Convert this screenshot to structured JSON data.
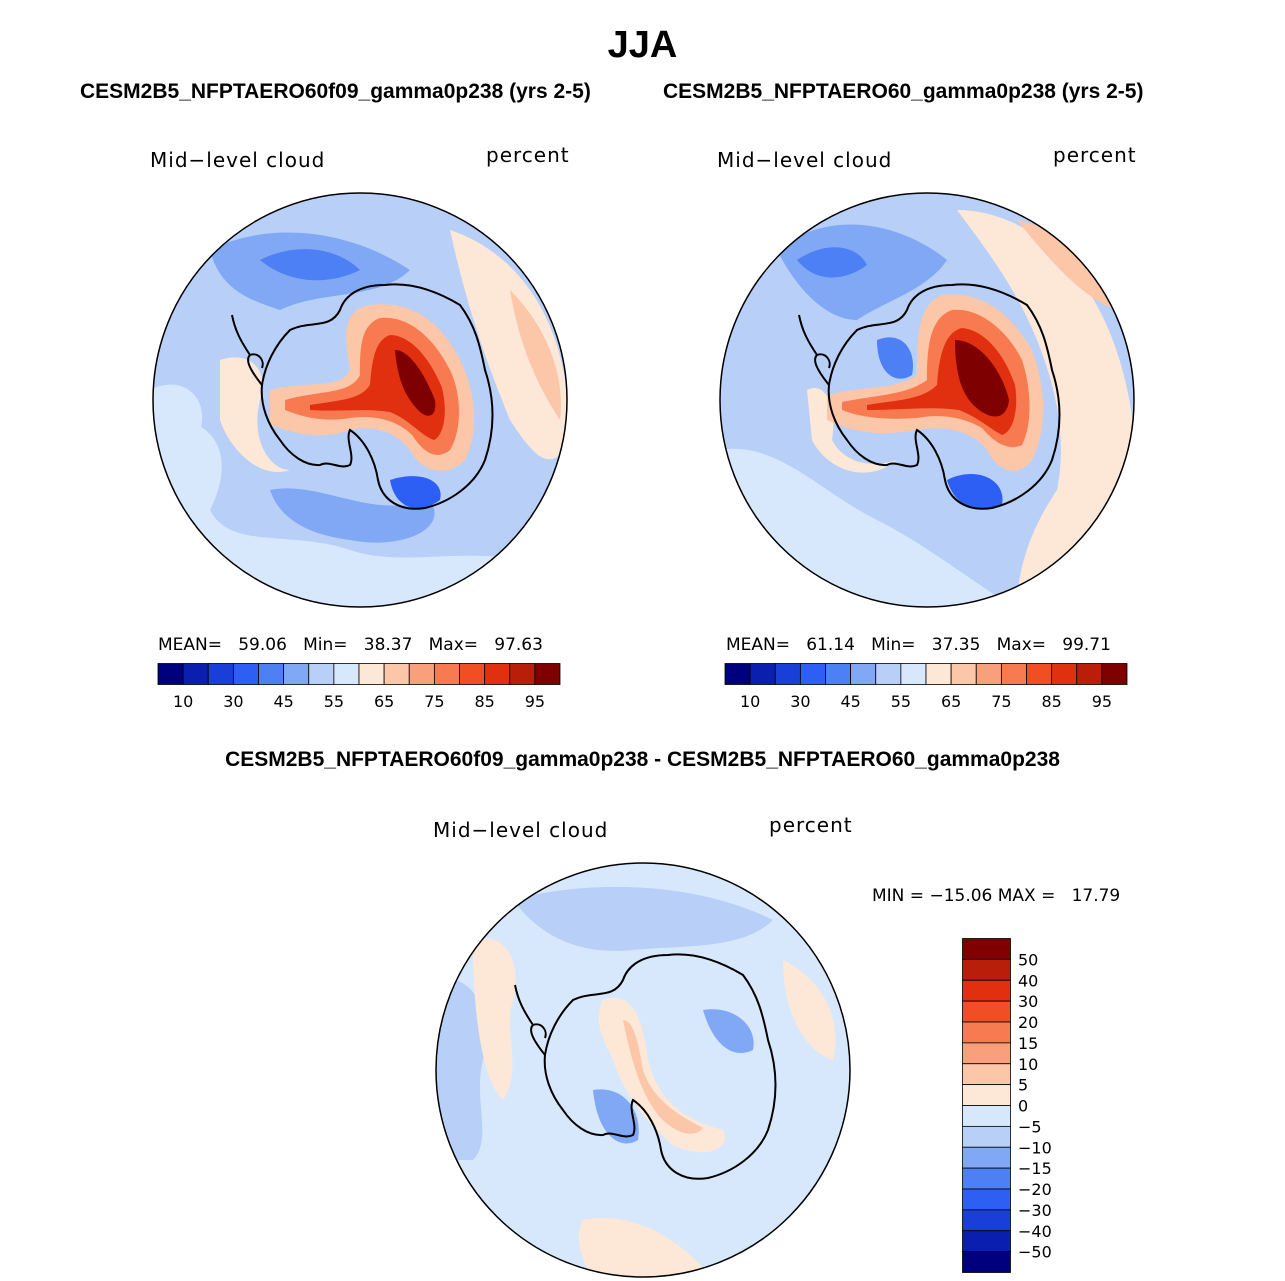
{
  "title": "JJA",
  "panels": [
    {
      "case_title": "CESM2B5_NFPTAERO60f09_gamma0p238 (yrs 2-5)",
      "variable": "Mid−level cloud",
      "units": "percent",
      "stats": {
        "mean_label": "MEAN=",
        "mean": "59.06",
        "min_label": "Min=",
        "min": "38.37",
        "max_label": "Max=",
        "max": "97.63"
      }
    },
    {
      "case_title": "CESM2B5_NFPTAERO60_gamma0p238 (yrs 2-5)",
      "variable": "Mid−level cloud",
      "units": "percent",
      "stats": {
        "mean_label": "MEAN=",
        "mean": "61.14",
        "min_label": "Min=",
        "min": "37.35",
        "max_label": "Max=",
        "max": "99.71"
      }
    }
  ],
  "diff_panel": {
    "title": "CESM2B5_NFPTAERO60f09_gamma0p238 - CESM2B5_NFPTAERO60_gamma0p238",
    "variable": "Mid−level cloud",
    "units": "percent",
    "stats": {
      "text": "MIN = −15.06 MAX =   17.79"
    }
  },
  "abs_colorbar": {
    "colors": [
      "#00007f",
      "#0a1fb0",
      "#1a3fd8",
      "#2d5ff5",
      "#4d7ff5",
      "#80a8f5",
      "#b8d0f8",
      "#d8e8fc",
      "#fde8d8",
      "#fcc6a8",
      "#f8a07c",
      "#f77a50",
      "#f24e24",
      "#e03010",
      "#b81e0a",
      "#7f0000"
    ],
    "tick_labels": [
      "10",
      "30",
      "45",
      "55",
      "65",
      "75",
      "85",
      "95"
    ]
  },
  "diff_colorbar": {
    "colors": [
      "#7f0000",
      "#b81e0a",
      "#e03010",
      "#f24e24",
      "#f77a50",
      "#f8a07c",
      "#fcc6a8",
      "#fde8d8",
      "#d8e8fc",
      "#b8d0f8",
      "#80a8f5",
      "#4d7ff5",
      "#2d5ff5",
      "#1a3fd8",
      "#0a1fb0",
      "#00007f"
    ],
    "tick_labels": [
      "50",
      "40",
      "30",
      "20",
      "15",
      "10",
      "5",
      "0",
      "−5",
      "−10",
      "−15",
      "−20",
      "−30",
      "−40",
      "−50"
    ]
  },
  "map_colors": {
    "ocean_pale": "#d8e8fc",
    "light_blue": "#b8d0f8",
    "mid_blue": "#80a8f5",
    "blue": "#4d7ff5",
    "deep_blue": "#2d5ff5",
    "peach": "#fde8d8",
    "salmon": "#fcc6a8",
    "orange": "#f77a50",
    "red": "#e03010",
    "dark_red": "#b81e0a",
    "maroon": "#7f0000"
  }
}
